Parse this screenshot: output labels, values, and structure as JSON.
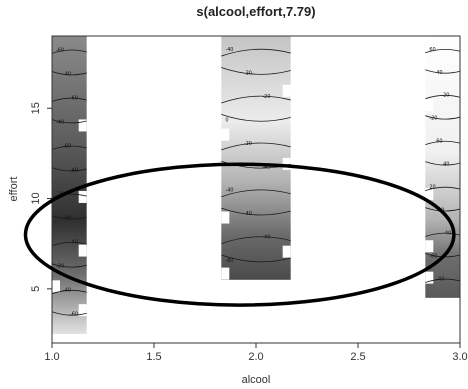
{
  "chart_data": {
    "type": "contour",
    "title": "s(alcool,effort,7.79)",
    "xlabel": "alcool",
    "ylabel": "effort",
    "xlim": [
      1.0,
      3.0
    ],
    "ylim": [
      2,
      19
    ],
    "x_ticks": [
      "1.0",
      "1.5",
      "2.0",
      "2.5",
      "3.0"
    ],
    "y_ticks": [
      "5",
      "10",
      "15"
    ],
    "grid": false,
    "colormap": "grayscale",
    "bands": [
      {
        "name": "alcool-1.0",
        "x_range": [
          1.0,
          1.17
        ],
        "y_range": [
          2.5,
          19
        ],
        "contour_levels": [
          "-60",
          "-40",
          "-60",
          "-40",
          "-60",
          "-40",
          "-20",
          "-60",
          "-40",
          "-20",
          "-40",
          "-60"
        ]
      },
      {
        "name": "alcool-2.0",
        "x_range": [
          1.83,
          2.17
        ],
        "y_range": [
          5.5,
          19
        ],
        "contour_levels": [
          "-40",
          "-30",
          "-20",
          "0",
          "-20",
          "-40",
          "-40",
          "-40",
          "-40",
          "-60"
        ]
      },
      {
        "name": "alcool-3.0",
        "x_range": [
          2.83,
          3.0
        ],
        "y_range": [
          4.5,
          19
        ],
        "contour_levels": [
          "60",
          "40",
          "20",
          "-20",
          "60",
          "40",
          "20",
          "-20",
          "-40",
          "-60",
          "-40"
        ]
      }
    ],
    "annotation": {
      "shape": "ellipse",
      "center": [
        1.92,
        8.0
      ],
      "radius_x": 1.05,
      "radius_y": 3.9,
      "color": "#000000"
    }
  }
}
